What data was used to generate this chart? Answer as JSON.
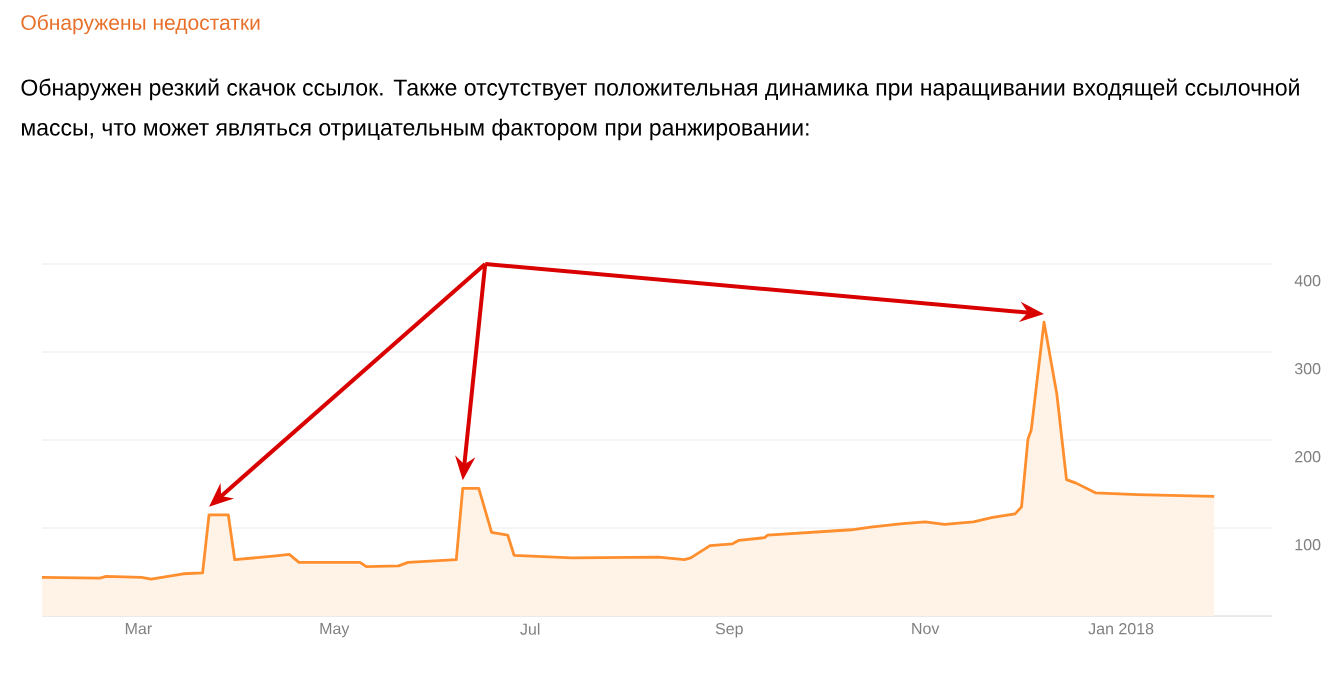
{
  "chart_data": {
    "type": "area",
    "title": "Обнаружены недостатки",
    "subtitle": "Обнаружен резкий скачок ссылок. Также отсутствует положительная динамика при наращивании входящей ссылочной массы, что может являться отрицательным фактором при ранжировании:",
    "x": [
      "2017-01-30",
      "2017-02-17",
      "2017-02-19",
      "2017-03-02",
      "2017-03-05",
      "2017-03-15",
      "2017-03-21",
      "2017-03-23",
      "2017-03-29",
      "2017-03-31",
      "2017-04-12",
      "2017-04-17",
      "2017-04-20",
      "2017-05-09",
      "2017-05-11",
      "2017-05-21",
      "2017-05-24",
      "2017-06-08",
      "2017-06-10",
      "2017-06-15",
      "2017-06-19",
      "2017-06-24",
      "2017-06-26",
      "2017-07-14",
      "2017-08-10",
      "2017-08-18",
      "2017-08-20",
      "2017-08-26",
      "2017-09-02",
      "2017-09-04",
      "2017-09-12",
      "2017-09-13",
      "2017-10-09",
      "2017-10-15",
      "2017-10-25",
      "2017-11-01",
      "2017-11-07",
      "2017-11-16",
      "2017-11-22",
      "2017-11-29",
      "2017-12-01",
      "2017-12-03",
      "2017-12-04",
      "2017-12-08",
      "2017-12-12",
      "2017-12-15",
      "2017-12-18",
      "2017-12-24",
      "2018-01-06",
      "2018-01-30"
    ],
    "values": [
      44,
      43,
      45,
      44,
      42,
      48,
      49,
      115,
      115,
      64,
      68,
      70,
      61,
      61,
      56,
      57,
      61,
      64,
      145,
      145,
      95,
      92,
      69,
      66,
      67,
      64,
      66,
      80,
      82,
      86,
      89,
      92,
      98,
      101,
      105,
      107,
      104,
      107,
      112,
      116,
      124,
      201,
      211,
      334,
      252,
      155,
      151,
      140,
      138,
      136
    ],
    "color": "#ff8f2e",
    "xlim": [
      "2017-01-30",
      "2018-02-17"
    ],
    "xticks": [
      {
        "value": "2017-03-01",
        "label": "Mar"
      },
      {
        "value": "2017-05-01",
        "label": "May"
      },
      {
        "value": "2017-07-01",
        "label": "Jul"
      },
      {
        "value": "2017-09-01",
        "label": "Sep"
      },
      {
        "value": "2017-11-01",
        "label": "Nov"
      },
      {
        "value": "2018-01-01",
        "label": "Jan 2018"
      }
    ],
    "ylim": [
      0,
      400
    ],
    "yticks": [
      100,
      200,
      300,
      400
    ],
    "grid": "y"
  }
}
